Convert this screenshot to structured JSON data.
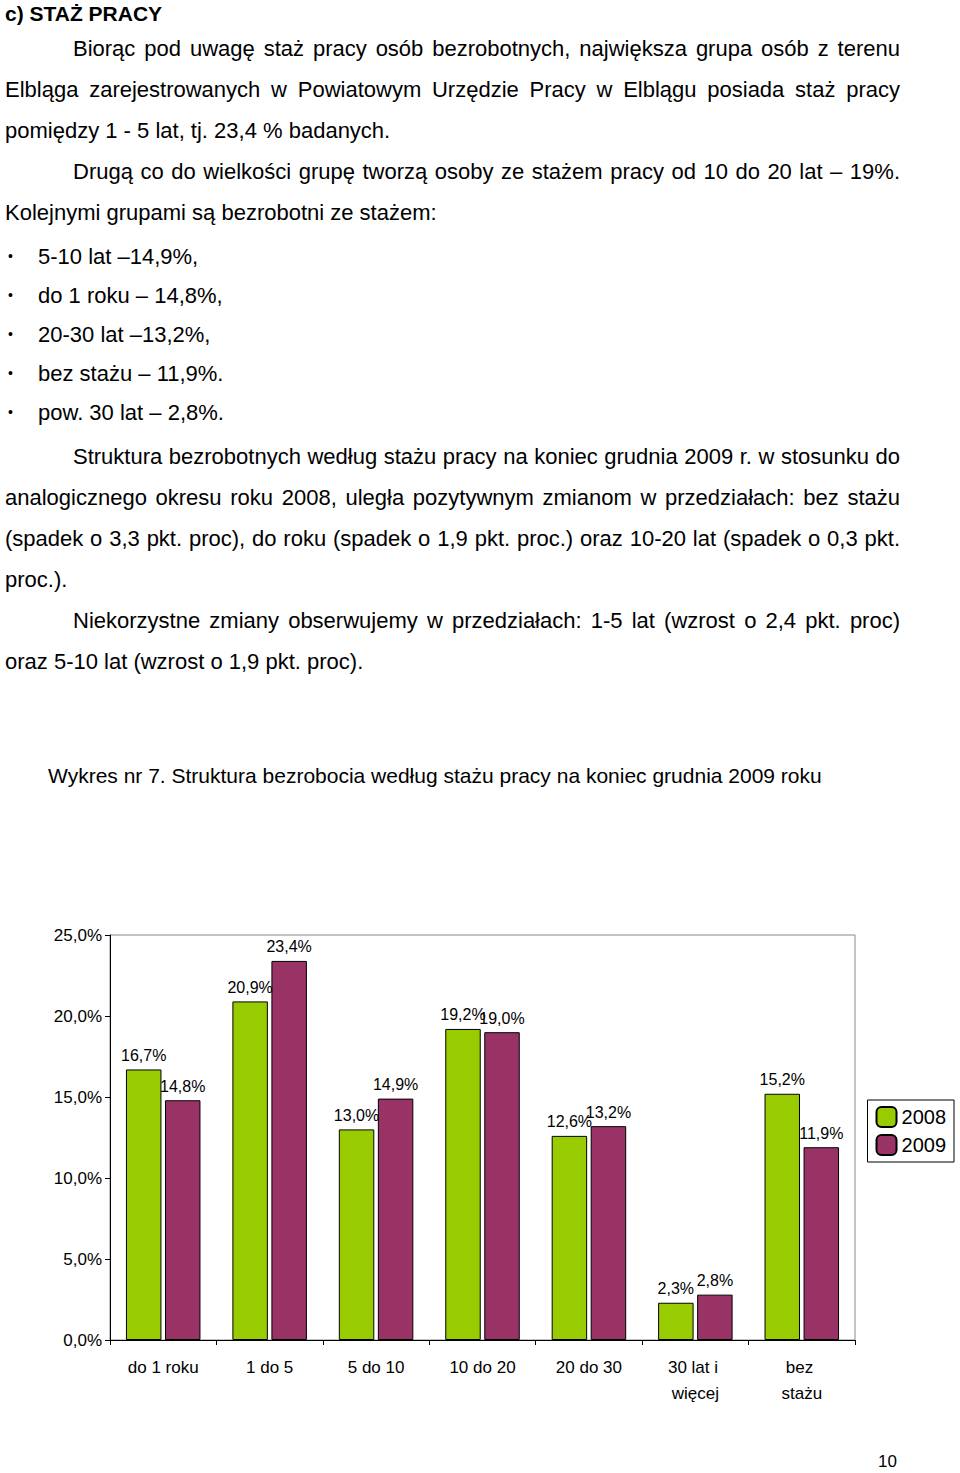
{
  "heading": "c) STAŻ PRACY",
  "paragraphs_before": [
    "Biorąc pod uwagę staż pracy osób bezrobotnych, największa grupa osób z terenu Elbląga zarejestrowanych w Powiatowym Urzędzie Pracy w Elblągu posiada staż pracy pomiędzy 1 - 5 lat, tj. 23,4 % badanych.",
    "Drugą co do wielkości grupę tworzą osoby ze stażem pracy od 10 do 20 lat – 19%. Kolejnymi grupami są bezrobotni ze stażem:"
  ],
  "bullets": [
    "5-10 lat –14,9%,",
    "do 1 roku – 14,8%,",
    "20-30 lat –13,2%,",
    "bez stażu – 11,9%.",
    "pow. 30 lat – 2,8%."
  ],
  "paragraphs_after": [
    "Struktura bezrobotnych według stażu pracy na koniec grudnia 2009 r. w stosunku do analogicznego okresu roku 2008, uległa pozytywnym zmianom w przedziałach: bez stażu (spadek o 3,3 pkt. proc), do roku (spadek o 1,9 pkt. proc.) oraz 10-20 lat (spadek o 0,3 pkt. proc.).",
    "Niekorzystne zmiany obserwujemy w przedziałach: 1-5 lat (wzrost o 2,4 pkt. proc) oraz 5-10 lat (wzrost o 1,9 pkt. proc)."
  ],
  "caption": "Wykres nr 7. Struktura bezrobocia według stażu pracy na koniec grudnia 2009 roku",
  "page_number": "10",
  "chart_data": {
    "type": "bar",
    "categories": [
      "do 1 roku",
      "1 do 5",
      "5 do 10",
      "10 do 20",
      "20 do 30",
      "30 lat i więcej",
      "bez stażu"
    ],
    "series": [
      {
        "name": "2008",
        "color": "#99cc00",
        "values": [
          16.7,
          20.9,
          13.0,
          19.2,
          12.6,
          2.3,
          15.2
        ],
        "value_labels": [
          "16,7%",
          "20,9%",
          "13,0%",
          "19,2%",
          "12,6%",
          "2,3%",
          "15,2%"
        ]
      },
      {
        "name": "2009",
        "color": "#993366",
        "values": [
          14.8,
          23.4,
          14.9,
          19.0,
          13.2,
          2.8,
          11.9
        ],
        "value_labels": [
          "14,8%",
          "23,4%",
          "14,9%",
          "19,0%",
          "13,2%",
          "2,8%",
          "11,9%"
        ]
      }
    ],
    "ylim": [
      0,
      25
    ],
    "yticks": [
      {
        "value": 0,
        "label": "0,0%"
      },
      {
        "value": 5,
        "label": "5,0%"
      },
      {
        "value": 10,
        "label": "10,0%"
      },
      {
        "value": 15,
        "label": "15,0%"
      },
      {
        "value": 20,
        "label": "20,0%"
      },
      {
        "value": 25,
        "label": "25,0%"
      }
    ],
    "grid": false,
    "legend": "right",
    "data_labels": true
  }
}
